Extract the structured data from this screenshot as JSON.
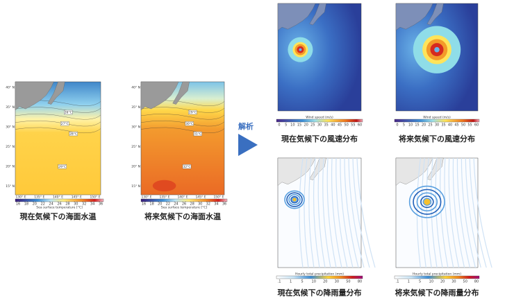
{
  "arrow_label": "解析",
  "panels": [
    {
      "kind": "sst",
      "caption": "現在気候下の海面水温",
      "colorbar": {
        "title": "Sea surface temperature [°C]",
        "ticks": [
          16,
          18,
          20,
          22,
          24,
          26,
          28,
          30,
          32,
          34,
          36
        ]
      },
      "lat_labels": [
        "40° N",
        "35° N",
        "30° N",
        "25° N",
        "20° N",
        "15° N"
      ],
      "lon_labels": [
        "130° E",
        "135° E",
        "140° E",
        "145° E",
        "150° E"
      ],
      "contours": [
        "26°C",
        "27°C",
        "28°C",
        "29°C"
      ]
    },
    {
      "kind": "sst2",
      "caption": "将来気候下の海面水温",
      "colorbar": {
        "title": "Sea surface temperature [°C]",
        "ticks": [
          16,
          18,
          20,
          22,
          24,
          26,
          28,
          30,
          32,
          34,
          36
        ]
      },
      "lat_labels": [
        "40° N",
        "35° N",
        "30° N",
        "25° N",
        "20° N",
        "15° N"
      ],
      "lon_labels": [
        "130° E",
        "135° E",
        "140° E",
        "145° E",
        "150° E"
      ],
      "contours": [
        "29°C",
        "30°C",
        "31°C",
        "32°C"
      ]
    },
    {
      "kind": "wind",
      "caption": "現在気候下の風速分布",
      "colorbar": {
        "title": "Wind speed (m/s)",
        "ticks": [
          0,
          5,
          10,
          15,
          20,
          25,
          30,
          35,
          40,
          45,
          50,
          55,
          60
        ]
      }
    },
    {
      "kind": "wind2",
      "caption": "将来気候下の風速分布",
      "colorbar": {
        "title": "Wind speed (m/s)",
        "ticks": [
          0,
          5,
          10,
          15,
          20,
          25,
          30,
          35,
          40,
          45,
          50,
          55,
          60
        ]
      }
    },
    {
      "kind": "prec",
      "caption": "現在気候下の降雨量分布",
      "colorbar": {
        "title": "Hourly total precipitation (mm)",
        "ticks": [
          ".1",
          1,
          5,
          10,
          20,
          30,
          50,
          80
        ]
      }
    },
    {
      "kind": "prec2",
      "caption": "将来気候下の降雨量分布",
      "colorbar": {
        "title": "Hourly total precipitation (mm)",
        "ticks": [
          ".1",
          1,
          5,
          10,
          20,
          30,
          50,
          80
        ]
      }
    }
  ]
}
